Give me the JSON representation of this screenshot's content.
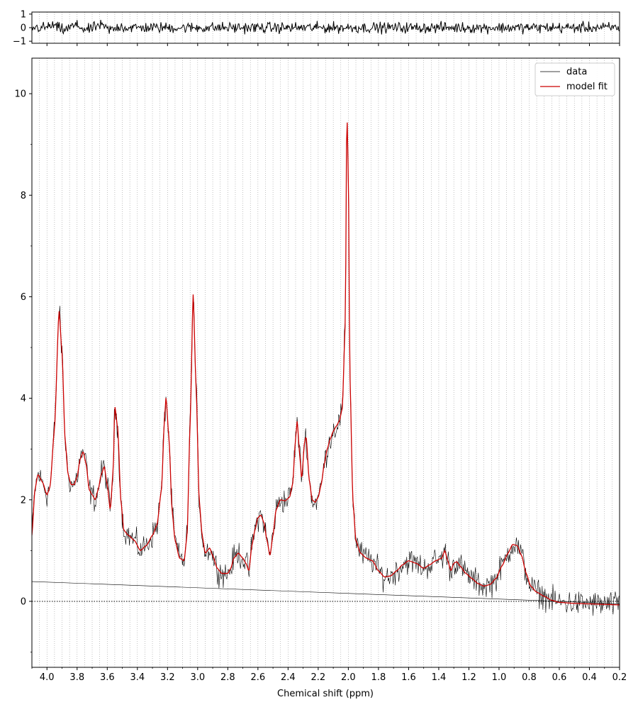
{
  "chart_data": {
    "type": "line",
    "xlabel": "Chemical shift (ppm)",
    "x_reversed": true,
    "xlim": [
      4.1,
      0.2
    ],
    "x_ticks": [
      4.0,
      3.8,
      3.6,
      3.4,
      3.2,
      3.0,
      2.8,
      2.6,
      2.4,
      2.2,
      2.0,
      1.8,
      1.6,
      1.4,
      1.2,
      1.0,
      0.8,
      0.6,
      0.4,
      0.2
    ],
    "x_tick_labels": [
      "4.0",
      "3.8",
      "3.6",
      "3.4",
      "3.2",
      "3.0",
      "2.8",
      "2.6",
      "2.4",
      "2.2",
      "2.0",
      "1.8",
      "1.6",
      "1.4",
      "1.2",
      "1.0",
      "0.8",
      "0.6",
      "0.4",
      "0.2"
    ],
    "legend_position": "top-right",
    "colors": {
      "data": "#000000",
      "model_fit": "#cc0000",
      "baseline": "#000000",
      "grid": "#999999"
    },
    "vertical_dotted_grid": true,
    "residual_panel": {
      "ylim": [
        -1.15,
        1.15
      ],
      "y_ticks": [
        1,
        0,
        -1
      ],
      "y_tick_labels": [
        "1",
        "0",
        "−1"
      ],
      "residual_amplitude": 0.28
    },
    "main_panel": {
      "ylim": [
        -1.3,
        10.7
      ],
      "y_ticks": [
        0,
        2,
        4,
        6,
        8,
        10
      ],
      "y_tick_labels": [
        "0",
        "2",
        "4",
        "6",
        "8",
        "10"
      ],
      "zero_line": "dotted",
      "series": [
        {
          "name": "data",
          "role": "data",
          "noise_amplitude": 0.18
        },
        {
          "name": "model fit",
          "role": "model"
        }
      ],
      "baseline": {
        "x": [
          4.1,
          0.6,
          0.2
        ],
        "y": [
          0.39,
          0.0,
          -0.05
        ]
      },
      "model_fit_points": [
        [
          4.1,
          1.3
        ],
        [
          4.08,
          2.2
        ],
        [
          4.06,
          2.5
        ],
        [
          4.03,
          2.35
        ],
        [
          4.0,
          2.1
        ],
        [
          3.98,
          2.25
        ],
        [
          3.95,
          3.4
        ],
        [
          3.92,
          5.73
        ],
        [
          3.9,
          4.9
        ],
        [
          3.88,
          3.2
        ],
        [
          3.86,
          2.5
        ],
        [
          3.84,
          2.3
        ],
        [
          3.82,
          2.3
        ],
        [
          3.8,
          2.45
        ],
        [
          3.78,
          2.8
        ],
        [
          3.76,
          2.95
        ],
        [
          3.74,
          2.7
        ],
        [
          3.72,
          2.2
        ],
        [
          3.7,
          2.1
        ],
        [
          3.68,
          2.0
        ],
        [
          3.66,
          2.2
        ],
        [
          3.64,
          2.5
        ],
        [
          3.62,
          2.65
        ],
        [
          3.6,
          2.3
        ],
        [
          3.58,
          1.8
        ],
        [
          3.56,
          2.6
        ],
        [
          3.55,
          3.85
        ],
        [
          3.53,
          3.4
        ],
        [
          3.51,
          2.0
        ],
        [
          3.49,
          1.4
        ],
        [
          3.46,
          1.3
        ],
        [
          3.42,
          1.2
        ],
        [
          3.38,
          1.0
        ],
        [
          3.34,
          1.1
        ],
        [
          3.3,
          1.3
        ],
        [
          3.27,
          1.5
        ],
        [
          3.24,
          2.2
        ],
        [
          3.22,
          3.6
        ],
        [
          3.21,
          4.02
        ],
        [
          3.19,
          3.2
        ],
        [
          3.17,
          1.8
        ],
        [
          3.15,
          1.2
        ],
        [
          3.12,
          0.85
        ],
        [
          3.09,
          0.8
        ],
        [
          3.07,
          1.3
        ],
        [
          3.05,
          3.5
        ],
        [
          3.03,
          6.05
        ],
        [
          3.01,
          4.2
        ],
        [
          2.99,
          2.0
        ],
        [
          2.97,
          1.3
        ],
        [
          2.95,
          0.95
        ],
        [
          2.92,
          1.05
        ],
        [
          2.9,
          0.9
        ],
        [
          2.87,
          0.65
        ],
        [
          2.84,
          0.55
        ],
        [
          2.8,
          0.55
        ],
        [
          2.78,
          0.65
        ],
        [
          2.76,
          0.85
        ],
        [
          2.73,
          0.95
        ],
        [
          2.7,
          0.85
        ],
        [
          2.68,
          0.75
        ],
        [
          2.66,
          0.6
        ],
        [
          2.64,
          1.1
        ],
        [
          2.62,
          1.4
        ],
        [
          2.6,
          1.65
        ],
        [
          2.58,
          1.7
        ],
        [
          2.56,
          1.55
        ],
        [
          2.54,
          1.2
        ],
        [
          2.52,
          0.9
        ],
        [
          2.5,
          1.3
        ],
        [
          2.48,
          1.8
        ],
        [
          2.45,
          2.0
        ],
        [
          2.42,
          1.98
        ],
        [
          2.39,
          2.05
        ],
        [
          2.37,
          2.3
        ],
        [
          2.35,
          3.2
        ],
        [
          2.34,
          3.55
        ],
        [
          2.32,
          2.8
        ],
        [
          2.31,
          2.4
        ],
        [
          2.29,
          3.15
        ],
        [
          2.28,
          3.25
        ],
        [
          2.26,
          2.4
        ],
        [
          2.24,
          2.0
        ],
        [
          2.22,
          1.95
        ],
        [
          2.2,
          2.05
        ],
        [
          2.18,
          2.3
        ],
        [
          2.16,
          2.7
        ],
        [
          2.14,
          3.0
        ],
        [
          2.12,
          3.2
        ],
        [
          2.1,
          3.35
        ],
        [
          2.08,
          3.45
        ],
        [
          2.06,
          3.55
        ],
        [
          2.04,
          3.8
        ],
        [
          2.02,
          5.5
        ],
        [
          2.01,
          9.7
        ],
        [
          2.0,
          8.5
        ],
        [
          1.99,
          4.5
        ],
        [
          1.97,
          2.0
        ],
        [
          1.95,
          1.2
        ],
        [
          1.92,
          0.95
        ],
        [
          1.88,
          0.85
        ],
        [
          1.84,
          0.8
        ],
        [
          1.8,
          0.6
        ],
        [
          1.76,
          0.48
        ],
        [
          1.72,
          0.5
        ],
        [
          1.68,
          0.6
        ],
        [
          1.64,
          0.72
        ],
        [
          1.6,
          0.8
        ],
        [
          1.55,
          0.75
        ],
        [
          1.5,
          0.65
        ],
        [
          1.46,
          0.72
        ],
        [
          1.42,
          0.8
        ],
        [
          1.38,
          0.85
        ],
        [
          1.36,
          1.0
        ],
        [
          1.34,
          0.8
        ],
        [
          1.32,
          0.6
        ],
        [
          1.3,
          0.75
        ],
        [
          1.28,
          0.78
        ],
        [
          1.26,
          0.7
        ],
        [
          1.22,
          0.55
        ],
        [
          1.18,
          0.45
        ],
        [
          1.14,
          0.35
        ],
        [
          1.1,
          0.3
        ],
        [
          1.06,
          0.33
        ],
        [
          1.02,
          0.45
        ],
        [
          0.98,
          0.7
        ],
        [
          0.94,
          0.95
        ],
        [
          0.91,
          1.12
        ],
        [
          0.88,
          1.1
        ],
        [
          0.85,
          0.9
        ],
        [
          0.82,
          0.55
        ],
        [
          0.79,
          0.3
        ],
        [
          0.75,
          0.18
        ],
        [
          0.7,
          0.1
        ],
        [
          0.65,
          0.02
        ],
        [
          0.6,
          -0.02
        ],
        [
          0.5,
          -0.04
        ],
        [
          0.4,
          -0.05
        ],
        [
          0.3,
          -0.06
        ],
        [
          0.2,
          -0.07
        ]
      ]
    }
  },
  "legend": {
    "data_label": "data",
    "fit_label": "model fit"
  }
}
